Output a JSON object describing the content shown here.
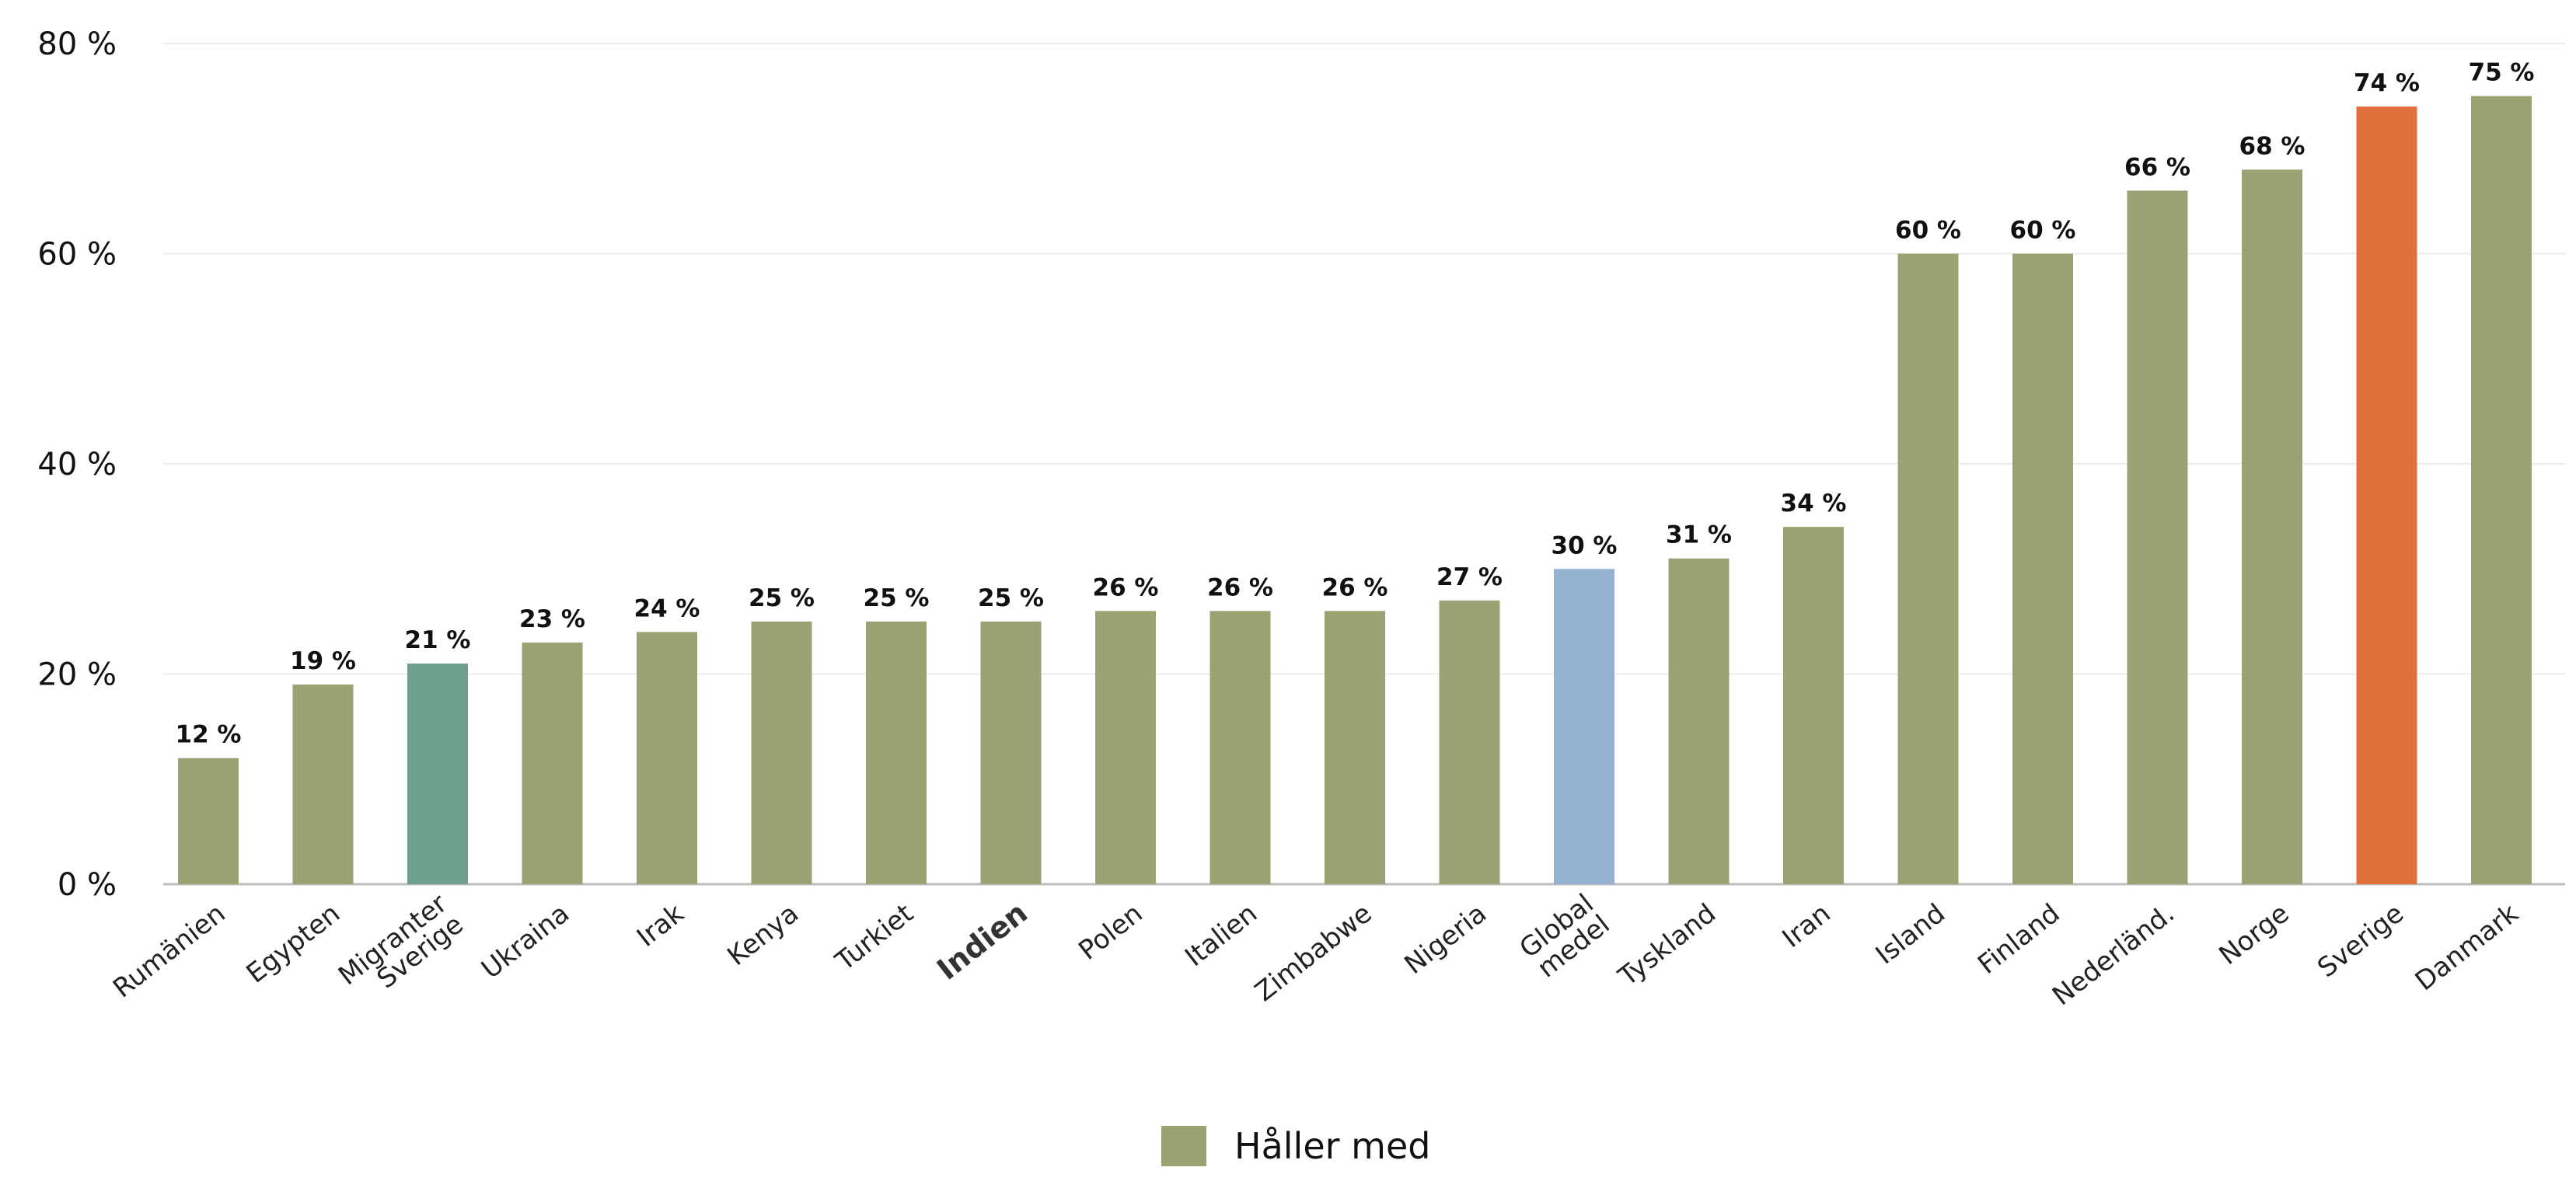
{
  "chart_data": {
    "type": "bar",
    "title": "",
    "xlabel": "",
    "ylabel": "",
    "ylim": [
      0,
      80
    ],
    "yticks": [
      0,
      20,
      40,
      60,
      80
    ],
    "ytick_labels": [
      "0 %",
      "20 %",
      "40 %",
      "60 %",
      "80 %"
    ],
    "grid": true,
    "legend_position": "bottom-center",
    "categories": [
      "Rumänien",
      "Egypten",
      "Migranter Sverige",
      "Ukraina",
      "Irak",
      "Kenya",
      "Turkiet",
      "Indien",
      "Polen",
      "Italien",
      "Zimbabwe",
      "Nigeria",
      "Global medel",
      "Tyskland",
      "Iran",
      "Island",
      "Finland",
      "Nederländ.",
      "Norge",
      "Sverige",
      "Danmark"
    ],
    "series": [
      {
        "name": "Håller med",
        "values": [
          12,
          19,
          21,
          23,
          24,
          25,
          25,
          25,
          26,
          26,
          26,
          27,
          30,
          31,
          34,
          60,
          60,
          66,
          68,
          74,
          75
        ],
        "value_labels": [
          "12 %",
          "19 %",
          "21 %",
          "23 %",
          "24 %",
          "25 %",
          "25 %",
          "25 %",
          "26 %",
          "26 %",
          "26 %",
          "27 %",
          "30 %",
          "31 %",
          "34 %",
          "60 %",
          "60 %",
          "66 %",
          "68 %",
          "74 %",
          "75 %"
        ],
        "color": "#9ba374"
      }
    ],
    "highlight_colors": {
      "Migranter Sverige": "#6fa08e",
      "Global medel": "#95b3d0",
      "Sverige": "#e0713d"
    },
    "bold_categories": [
      "Indien"
    ]
  }
}
